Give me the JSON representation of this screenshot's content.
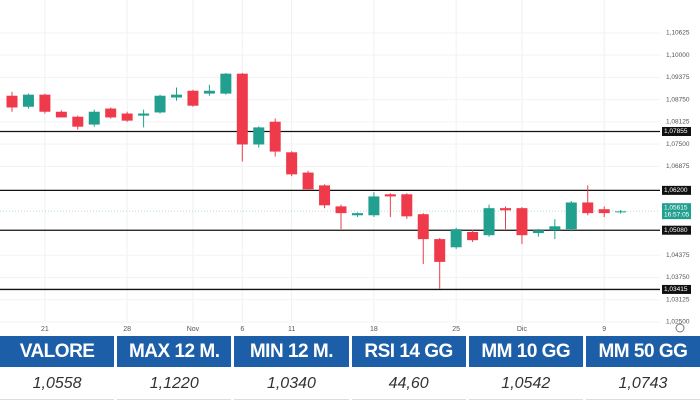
{
  "chart_data": {
    "type": "candlestick",
    "categories": [
      null,
      null,
      "21",
      null,
      null,
      null,
      null,
      "28",
      null,
      null,
      null,
      "Nov",
      null,
      null,
      "6",
      null,
      null,
      "11",
      null,
      null,
      null,
      null,
      "18",
      null,
      null,
      null,
      null,
      "25",
      null,
      null,
      null,
      "Dic",
      null,
      null,
      null,
      null,
      "9",
      null
    ],
    "open": [
      1.0886,
      1.0855,
      1.0889,
      1.0841,
      1.0827,
      1.0805,
      1.085,
      1.0836,
      1.083,
      1.0839,
      1.0881,
      1.09,
      1.0892,
      1.0892,
      1.0948,
      1.0749,
      1.0813,
      1.0727,
      1.067,
      1.0634,
      1.0575,
      1.055,
      1.055,
      1.0609,
      1.0609,
      1.0553,
      1.0483,
      1.046,
      1.0503,
      1.0494,
      1.057,
      1.057,
      1.05,
      1.0508,
      1.0511,
      1.0586,
      1.0567,
      1.0559
    ],
    "high": [
      1.0897,
      1.0892,
      1.0892,
      1.0845,
      1.083,
      1.0847,
      1.0853,
      1.0841,
      1.0847,
      1.0889,
      1.0909,
      1.0903,
      1.0917,
      1.095,
      1.095,
      1.08,
      1.0822,
      1.073,
      1.0675,
      1.0637,
      1.058,
      1.0558,
      1.0615,
      1.0612,
      1.0612,
      1.0556,
      1.0486,
      1.0515,
      1.051,
      1.058,
      1.0575,
      1.0573,
      1.0512,
      1.0539,
      1.059,
      1.0634,
      1.0575,
      1.0565
    ],
    "low": [
      1.0841,
      1.085,
      1.0836,
      1.0825,
      1.0791,
      1.0799,
      1.0822,
      1.0813,
      1.0797,
      1.0836,
      1.0872,
      1.0855,
      1.0886,
      1.0889,
      1.0701,
      1.074,
      1.0715,
      1.066,
      1.062,
      1.057,
      1.0511,
      1.0545,
      1.0545,
      1.0545,
      1.054,
      1.0413,
      1.0343,
      1.0455,
      1.0475,
      1.049,
      1.0511,
      1.0469,
      1.049,
      1.0483,
      1.0505,
      1.055,
      1.0545,
      1.0555
    ],
    "close": [
      1.0853,
      1.0889,
      1.0841,
      1.0825,
      1.0799,
      1.0841,
      1.0825,
      1.0816,
      1.0836,
      1.0886,
      1.0889,
      1.0858,
      1.09,
      1.0948,
      1.0749,
      1.0797,
      1.0729,
      1.0665,
      1.0623,
      1.0578,
      1.0556,
      1.0556,
      1.0603,
      1.0603,
      1.0547,
      1.0483,
      1.0419,
      1.0511,
      1.048,
      1.057,
      1.0564,
      1.0494,
      1.0508,
      1.0519,
      1.0586,
      1.0556,
      1.0556,
      1.0561
    ],
    "up_color": "#22a08f",
    "down_color": "#ee3a4a",
    "ylim": [
      1.025,
      1.11
    ],
    "yticks": [
      {
        "value": 1.10625,
        "label": "1,10625"
      },
      {
        "value": 1.1,
        "label": "1,10000"
      },
      {
        "value": 1.09375,
        "label": "1,09375"
      },
      {
        "value": 1.0875,
        "label": "1,08750"
      },
      {
        "value": 1.08125,
        "label": "1,08125"
      },
      {
        "value": 1.075,
        "label": "1,07500"
      },
      {
        "value": 1.06875,
        "label": "1,06875"
      },
      {
        "value": 1.04375,
        "label": "1,04375"
      },
      {
        "value": 1.0375,
        "label": "1,03750"
      },
      {
        "value": 1.03125,
        "label": "1,03125"
      },
      {
        "value": 1.025,
        "label": "1,02500"
      }
    ],
    "levels": [
      {
        "value": 1.07855,
        "label": "1,07855"
      },
      {
        "value": 1.062,
        "label": "1,06200"
      },
      {
        "value": 1.0508,
        "label": "1,05080"
      },
      {
        "value": 1.03415,
        "label": "1,03415"
      }
    ],
    "last": {
      "value": 1.05615,
      "label": "1,05615",
      "time": "16:57:05"
    }
  },
  "table": {
    "header": [
      "VALORE",
      "MAX 12 M.",
      "MIN 12 M.",
      "RSI 14 GG",
      "MM 10 GG",
      "MM 50 GG"
    ],
    "rows": [
      [
        "1,0558",
        "1,1220",
        "1,0340",
        "44,60",
        "1,0542",
        "1,0743"
      ]
    ]
  }
}
